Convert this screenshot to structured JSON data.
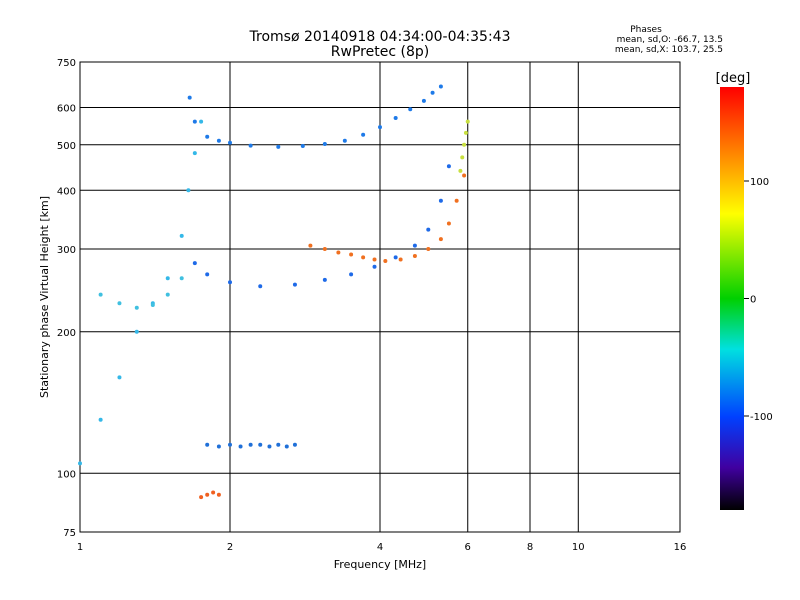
{
  "chart_data": {
    "type": "scatter",
    "title": "Tromsø 20140918 04:34:00-04:35:43",
    "subtitle": "RwPretec (8p)",
    "xlabel": "Frequency [MHz]",
    "ylabel": "Stationary phase Virtual Height [km]",
    "x_scale": "log",
    "y_scale": "log",
    "xlim": [
      1,
      16
    ],
    "ylim": [
      75,
      750
    ],
    "x_ticks": [
      1,
      2,
      4,
      6,
      8,
      10,
      16
    ],
    "y_ticks": [
      75,
      100,
      200,
      300,
      400,
      500,
      600,
      750
    ],
    "grid": true,
    "stats": {
      "heading": "Phases",
      "line_o": "mean, sd,O: -66.7, 13.5",
      "line_x": "mean, sd,X: 103.7, 25.5"
    },
    "colorbar": {
      "label": "[deg]",
      "range": [
        -180,
        180
      ],
      "ticks": [
        100,
        0,
        -100
      ]
    },
    "series": [
      {
        "name": "",
        "color": "#1e7ae8",
        "x": [
          1.66,
          1.7,
          1.8,
          1.9,
          2.0,
          2.2,
          2.5,
          2.8,
          3.1,
          3.4,
          3.7,
          4.0,
          4.3,
          4.6,
          4.9,
          5.1,
          5.3
        ],
        "y": [
          630,
          560,
          520,
          510,
          505,
          498,
          495,
          497,
          502,
          510,
          525,
          545,
          570,
          595,
          620,
          645,
          665
        ]
      },
      {
        "name": "",
        "color": "#1e6ae8",
        "x": [
          1.7,
          1.8,
          2.0,
          2.3,
          2.7,
          3.1,
          3.5,
          3.9,
          4.3,
          4.7,
          5.0,
          5.3,
          5.5
        ],
        "y": [
          280,
          265,
          255,
          250,
          252,
          258,
          265,
          275,
          288,
          305,
          330,
          380,
          450
        ]
      },
      {
        "name": "",
        "color": "#f07020",
        "x": [
          2.9,
          3.1,
          3.3,
          3.5,
          3.7,
          3.9,
          4.1,
          4.4,
          4.7,
          5.0,
          5.3,
          5.5,
          5.7,
          5.9
        ],
        "y": [
          305,
          300,
          295,
          292,
          288,
          285,
          283,
          285,
          290,
          300,
          315,
          340,
          380,
          430
        ]
      },
      {
        "name": "",
        "color": "#c8e040",
        "x": [
          5.8,
          5.85,
          5.9,
          5.95,
          6.0
        ],
        "y": [
          440,
          470,
          500,
          530,
          560
        ]
      },
      {
        "name": "",
        "color": "#34b8e8",
        "x": [
          1.0,
          1.1,
          1.2,
          1.3,
          1.4,
          1.5,
          1.6,
          1.65,
          1.7,
          1.75
        ],
        "y": [
          105,
          130,
          160,
          200,
          230,
          260,
          320,
          400,
          480,
          560
        ]
      },
      {
        "name": "",
        "color": "#40c0e0",
        "x": [
          1.1,
          1.2,
          1.3,
          1.4,
          1.5,
          1.6
        ],
        "y": [
          240,
          230,
          225,
          228,
          240,
          260
        ]
      },
      {
        "name": "",
        "color": "#2070d8",
        "x": [
          1.8,
          1.9,
          2.0,
          2.1,
          2.2,
          2.3,
          2.4,
          2.5,
          2.6,
          2.7
        ],
        "y": [
          115,
          114,
          115,
          114,
          115,
          115,
          114,
          115,
          114,
          115
        ]
      },
      {
        "name": "",
        "color": "#f06020",
        "x": [
          1.75,
          1.8,
          1.85,
          1.9
        ],
        "y": [
          89,
          90,
          91,
          90
        ]
      }
    ]
  }
}
